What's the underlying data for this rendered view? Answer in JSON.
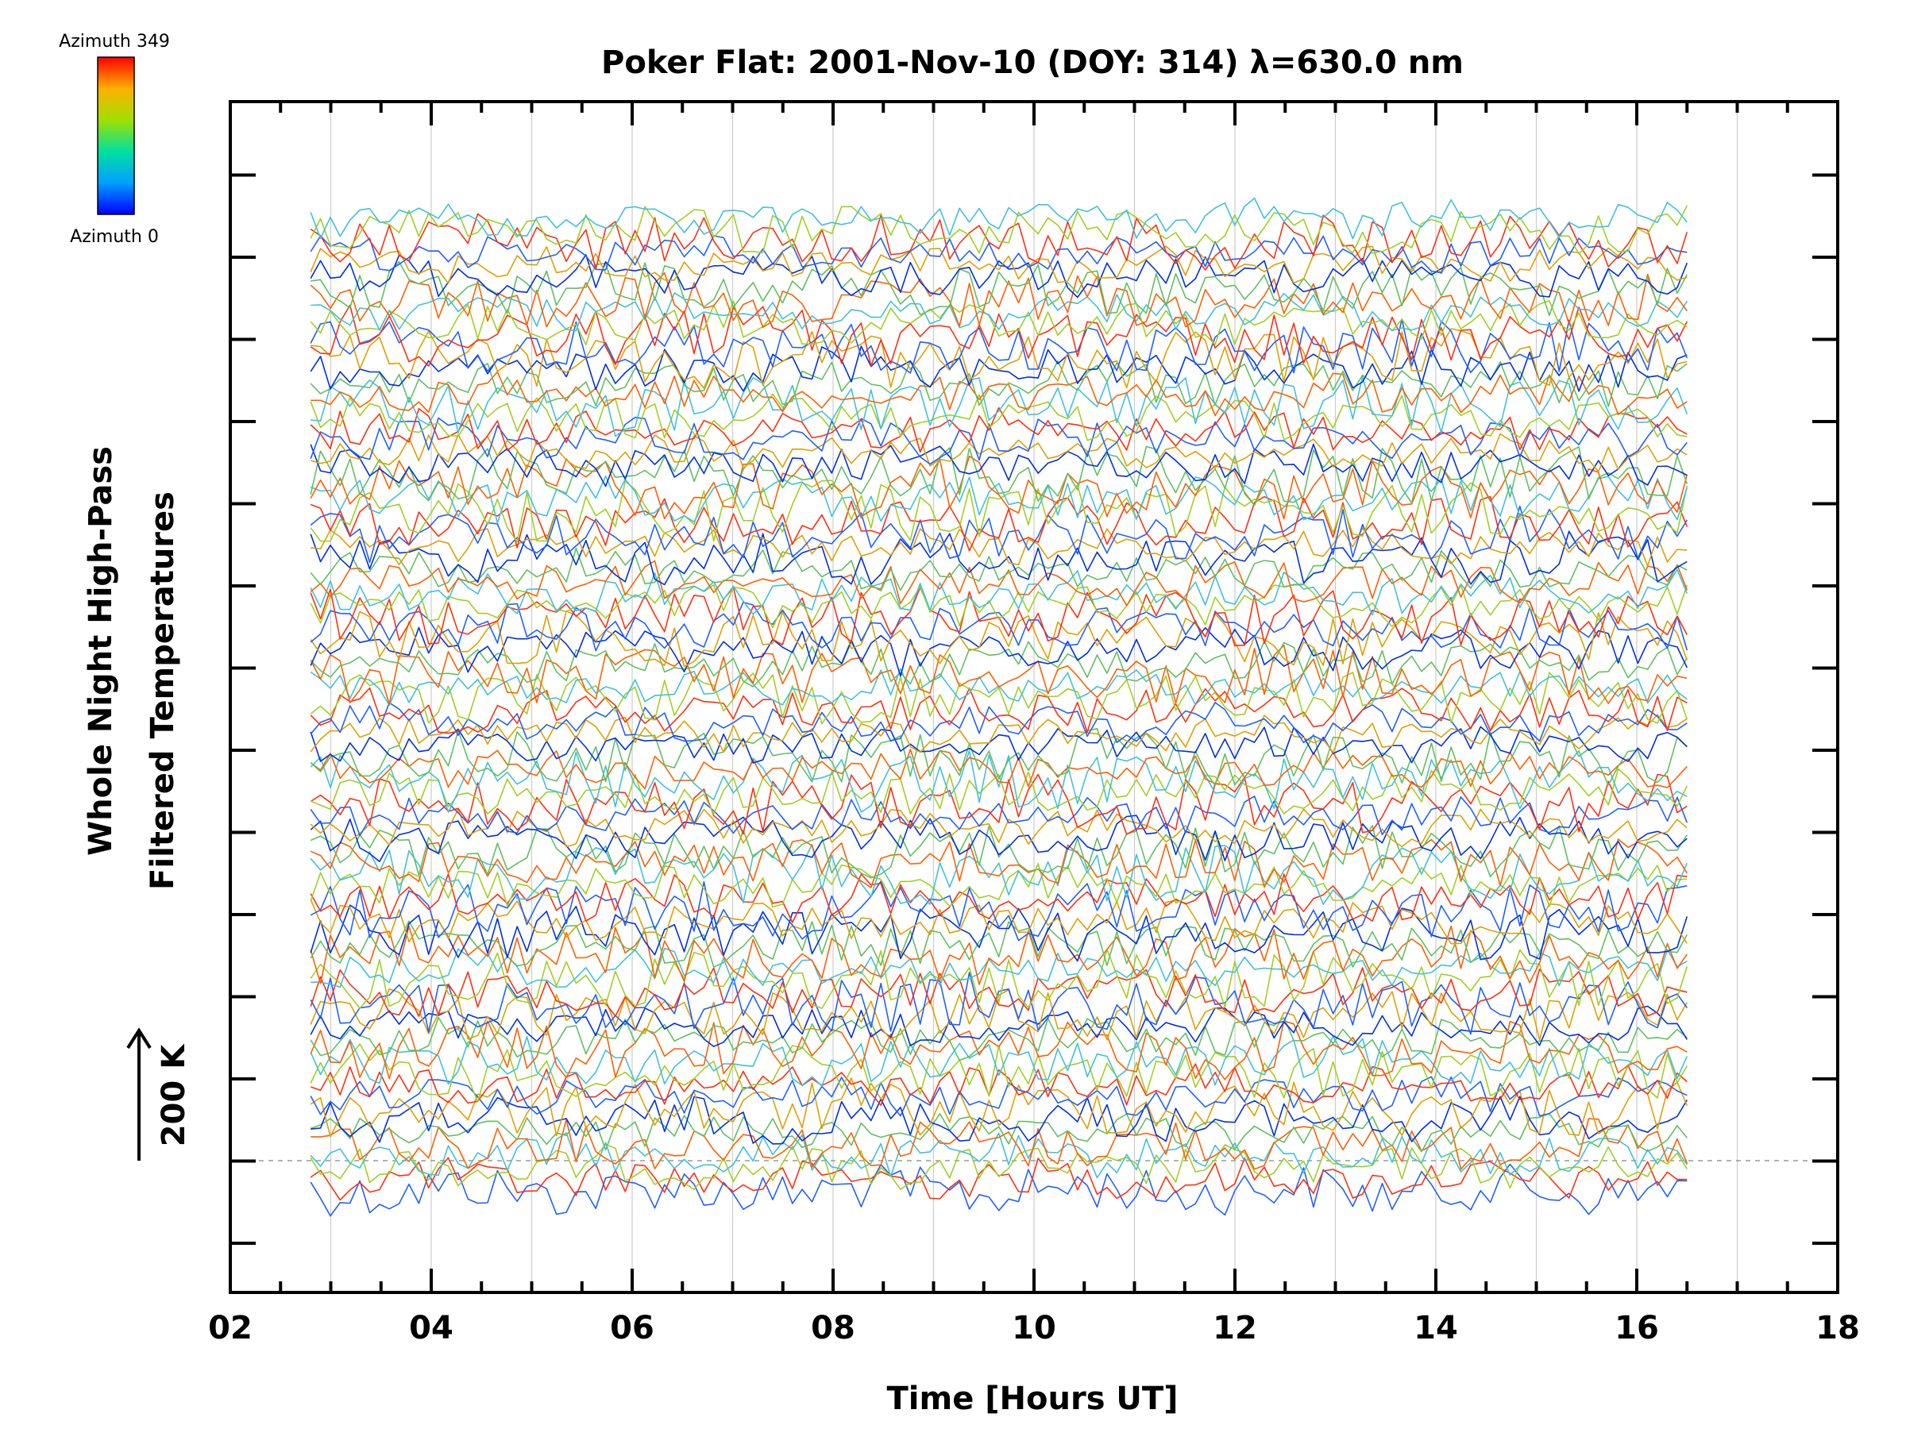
{
  "chart_data": {
    "type": "line",
    "title": "Poker Flat: 2001-Nov-10 (DOY: 314) λ=630.0 nm",
    "xlabel": "Time [Hours UT]",
    "ylabel_line1": "Whole Night High-Pass",
    "ylabel_line2": "Filtered Temperatures",
    "scale_marker": "200 K",
    "xlim": [
      2,
      18
    ],
    "x_tick_labels": [
      "02",
      "04",
      "06",
      "08",
      "10",
      "12",
      "14",
      "16",
      "18"
    ],
    "x_ticks": [
      2,
      4,
      6,
      8,
      10,
      12,
      14,
      16,
      18
    ],
    "data_time_range": [
      2.8,
      16.5
    ],
    "colorbar": {
      "top_label": "Azimuth 349",
      "bottom_label": "Azimuth 0",
      "colors": [
        "#0000ff",
        "#00a0ff",
        "#00e0a0",
        "#a0e000",
        "#ffb000",
        "#ff0000"
      ]
    },
    "grid": "vertical",
    "reference_line": "dashed baseline at 200 K offset",
    "series_description": "about 80 stacked, offset high-pass filtered temperature traces, colored by azimuth; 8 bands",
    "band_colors": [
      "#2060ff",
      "#ff3010",
      "#a0d020",
      "#40c0e0",
      "#ff6000",
      "#60c060",
      "#0030e0",
      "#e0a000"
    ]
  }
}
